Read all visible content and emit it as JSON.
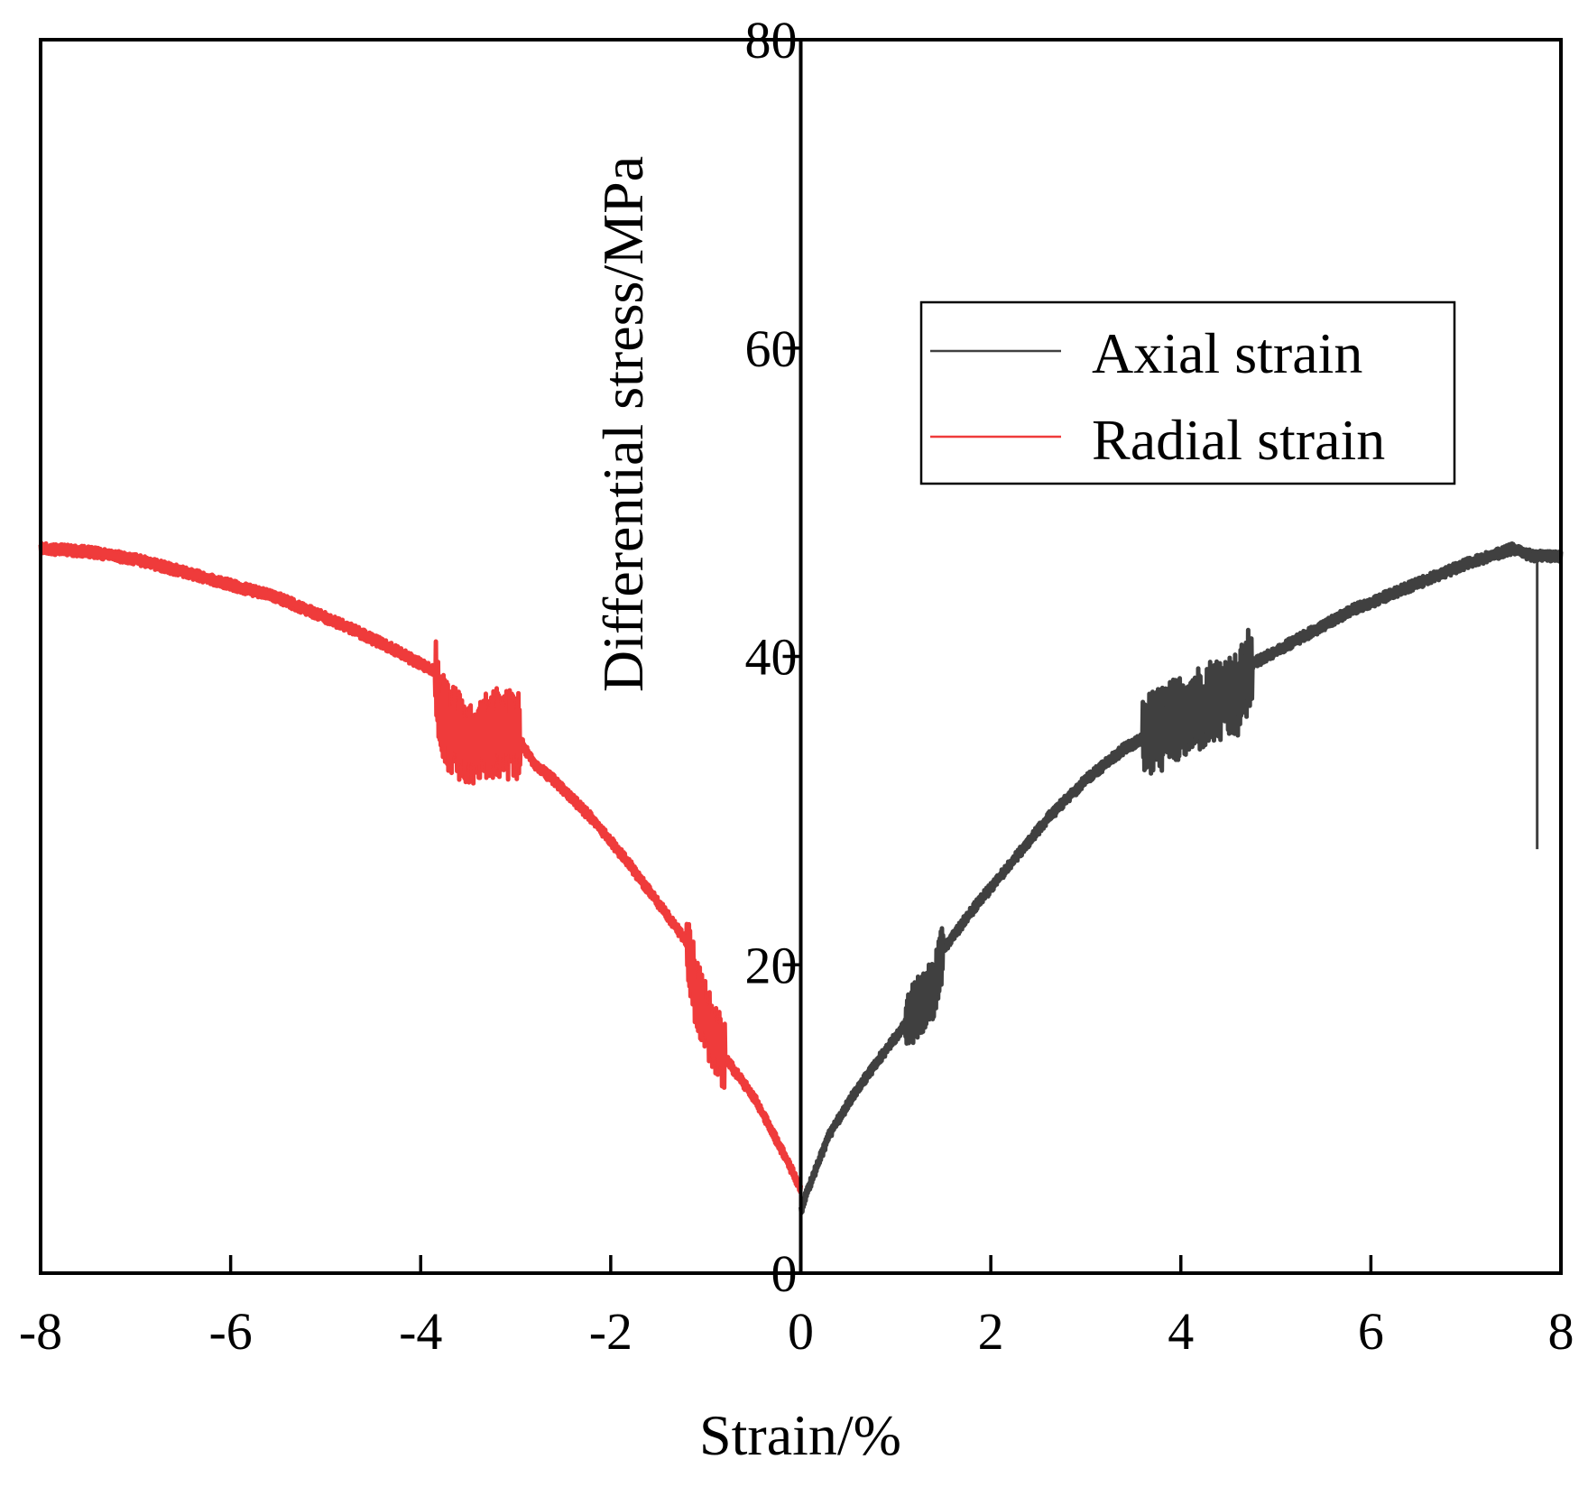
{
  "chart_data": {
    "type": "line",
    "title": "",
    "xlabel": "Strain/%",
    "ylabel": "Differential stress/MPa",
    "xlim": [
      -8,
      8
    ],
    "ylim": [
      0,
      80
    ],
    "xticks": [
      -8,
      -6,
      -4,
      -2,
      0,
      2,
      4,
      6,
      8
    ],
    "yticks": [
      0,
      20,
      40,
      60,
      80
    ],
    "xtick_labels": [
      "-8",
      "-6",
      "-4",
      "-2",
      "0",
      "2",
      "4",
      "6",
      "8"
    ],
    "ytick_labels": [
      "0",
      "20",
      "40",
      "60",
      "80"
    ],
    "legend_position": "upper-right",
    "grid": false,
    "series": [
      {
        "name": "Axial strain",
        "color": "#404040",
        "x": [
          0.0,
          0.05,
          0.3,
          0.6,
          0.9,
          1.2,
          1.4,
          1.5,
          1.8,
          2.2,
          2.6,
          3.0,
          3.4,
          3.7,
          4.0,
          4.3,
          4.6,
          4.75,
          5.2,
          5.8,
          6.4,
          7.0,
          7.5,
          7.7,
          8.0
        ],
        "y": [
          4.0,
          5.0,
          9.0,
          12.0,
          14.5,
          17.0,
          18.5,
          21.0,
          23.5,
          26.5,
          29.5,
          32.0,
          34.0,
          35.0,
          36.0,
          37.0,
          37.5,
          39.5,
          41.0,
          43.0,
          44.5,
          46.0,
          47.0,
          46.5,
          46.5
        ],
        "noise_segments": [
          {
            "x_from": 1.1,
            "x_to": 1.5,
            "amplitude": 2.0
          },
          {
            "x_from": 3.6,
            "x_to": 4.75,
            "amplitude": 2.8
          }
        ],
        "spike": {
          "x": 7.75,
          "y_low": 27.5,
          "y_high": 46.5
        }
      },
      {
        "name": "Radial strain",
        "color": "#ef3b3b",
        "x": [
          0.0,
          -0.2,
          -0.5,
          -0.8,
          -1.0,
          -1.1,
          -1.2,
          -1.5,
          -1.8,
          -2.2,
          -2.6,
          -2.8,
          -3.0,
          -3.2,
          -3.5,
          -3.8,
          -3.85,
          -4.3,
          -4.8,
          -5.5,
          -6.2,
          -7.0,
          -7.5,
          -8.0
        ],
        "y": [
          5.5,
          8.0,
          11.5,
          14.0,
          16.5,
          18.0,
          21.5,
          24.0,
          26.5,
          29.5,
          32.0,
          33.0,
          35.0,
          35.0,
          34.5,
          36.0,
          39.0,
          40.5,
          42.0,
          43.8,
          45.0,
          46.3,
          46.8,
          47.0
        ],
        "noise_segments": [
          {
            "x_from": -1.2,
            "x_to": -0.8,
            "amplitude": 2.4
          },
          {
            "x_from": -3.85,
            "x_to": -2.95,
            "amplitude": 3.0
          }
        ]
      }
    ]
  }
}
